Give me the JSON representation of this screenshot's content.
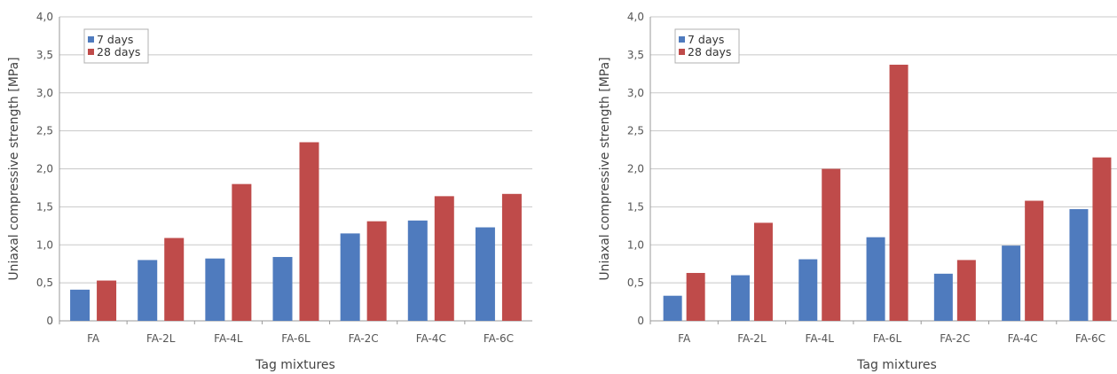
{
  "colors": {
    "series_7d": "#4F7BBE",
    "series_28d": "#BF4B4A",
    "grid": "#c8c8c8",
    "axis": "#9a9a9a"
  },
  "chart_data": [
    {
      "type": "bar",
      "categories": [
        "FA",
        "FA-2L",
        "FA-4L",
        "FA-6L",
        "FA-2C",
        "FA-4C",
        "FA-6C"
      ],
      "series": [
        {
          "name": "7 days",
          "values": [
            0.41,
            0.8,
            0.82,
            0.84,
            1.15,
            1.32,
            1.23
          ]
        },
        {
          "name": "28 days",
          "values": [
            0.53,
            1.09,
            1.8,
            2.35,
            1.31,
            1.64,
            1.67
          ]
        }
      ],
      "xlabel": "Tag mixtures",
      "ylabel": "Uniaxal compressive strength [MPa]",
      "ylim": [
        0,
        4.0
      ],
      "yticks": [
        "0",
        "0,5",
        "1,0",
        "1,5",
        "2,0",
        "2,5",
        "3,0",
        "3,5",
        "4,0"
      ],
      "grid": true,
      "legend": "top-left"
    },
    {
      "type": "bar",
      "categories": [
        "FA",
        "FA-2L",
        "FA-4L",
        "FA-6L",
        "FA-2C",
        "FA-4C",
        "FA-6C"
      ],
      "series": [
        {
          "name": "7 days",
          "values": [
            0.33,
            0.6,
            0.81,
            1.1,
            0.62,
            0.99,
            1.47
          ]
        },
        {
          "name": "28 days",
          "values": [
            0.63,
            1.29,
            2.0,
            3.37,
            0.8,
            1.58,
            2.15
          ]
        }
      ],
      "xlabel": "Tag mixtures",
      "ylabel": "Uniaxal compressive strength [MPa]",
      "ylim": [
        0,
        4.0
      ],
      "yticks": [
        "0",
        "0,5",
        "1,0",
        "1,5",
        "2,0",
        "2,5",
        "3,0",
        "3,5",
        "4,0"
      ],
      "grid": true,
      "legend": "top-left"
    }
  ]
}
